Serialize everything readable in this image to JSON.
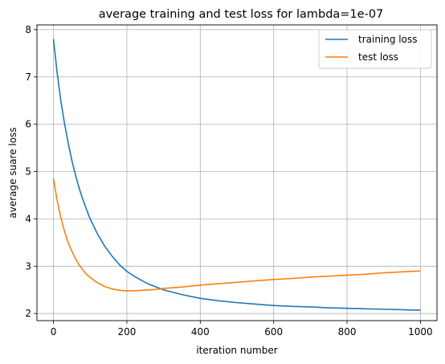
{
  "chart_data": {
    "type": "line",
    "title": "average training and test loss for lambda=1e-07",
    "xlabel": "iteration number",
    "ylabel": "average suare loss",
    "xlim": [
      -45,
      1045
    ],
    "ylim": [
      1.85,
      8.1
    ],
    "xticks": [
      0,
      200,
      400,
      600,
      800,
      1000
    ],
    "yticks": [
      2,
      3,
      4,
      5,
      6,
      7,
      8
    ],
    "grid": true,
    "legend_position": "top-right",
    "series": [
      {
        "name": "training loss",
        "color": "#1f77b4",
        "x": [
          0,
          10,
          20,
          30,
          40,
          50,
          60,
          70,
          80,
          90,
          100,
          120,
          140,
          160,
          180,
          200,
          220,
          240,
          260,
          280,
          300,
          350,
          400,
          450,
          500,
          550,
          600,
          650,
          700,
          750,
          800,
          850,
          900,
          950,
          1000
        ],
        "values": [
          7.8,
          7.09,
          6.5,
          6.02,
          5.61,
          5.24,
          4.93,
          4.65,
          4.41,
          4.2,
          4.0,
          3.68,
          3.42,
          3.21,
          3.03,
          2.89,
          2.79,
          2.7,
          2.62,
          2.56,
          2.5,
          2.4,
          2.32,
          2.27,
          2.23,
          2.2,
          2.17,
          2.15,
          2.14,
          2.12,
          2.11,
          2.1,
          2.09,
          2.08,
          2.07
        ]
      },
      {
        "name": "test loss",
        "color": "#ff7f0e",
        "x": [
          0,
          10,
          20,
          30,
          40,
          50,
          60,
          70,
          80,
          90,
          100,
          120,
          140,
          160,
          180,
          200,
          220,
          240,
          260,
          280,
          300,
          350,
          400,
          450,
          500,
          550,
          600,
          650,
          700,
          750,
          800,
          850,
          900,
          950,
          1000
        ],
        "values": [
          4.85,
          4.39,
          4.03,
          3.74,
          3.5,
          3.32,
          3.16,
          3.03,
          2.92,
          2.83,
          2.76,
          2.65,
          2.57,
          2.52,
          2.49,
          2.48,
          2.48,
          2.49,
          2.5,
          2.51,
          2.53,
          2.56,
          2.6,
          2.63,
          2.66,
          2.69,
          2.72,
          2.74,
          2.77,
          2.79,
          2.81,
          2.83,
          2.86,
          2.88,
          2.9
        ]
      }
    ]
  }
}
